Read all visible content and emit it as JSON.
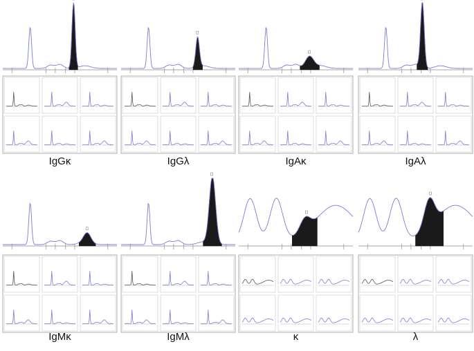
{
  "colors": {
    "trace": "#7b7bd6",
    "trace_dark": "#555555",
    "fill": "#1a1a1a",
    "box_border": "#9a9a9a",
    "axis": "#8a8a8a"
  },
  "panels": [
    {
      "id": "IgGk",
      "label": "IgGκ",
      "profile": "normal",
      "bandType": "spike",
      "bandPos": 0.62,
      "bandH": 1.0,
      "bandW": 0.03
    },
    {
      "id": "IgGl",
      "label": "IgGλ",
      "profile": "normal",
      "bandType": "spike",
      "bandPos": 0.67,
      "bandH": 0.45,
      "bandW": 0.035
    },
    {
      "id": "IgAk",
      "label": "IgAκ",
      "profile": "normal",
      "bandType": "bump",
      "bandPos": 0.62,
      "bandH": 0.18,
      "bandW": 0.08
    },
    {
      "id": "IgAl",
      "label": "IgAλ",
      "profile": "normal",
      "bandType": "spike",
      "bandPos": 0.56,
      "bandH": 1.0,
      "bandW": 0.035
    },
    {
      "id": "IgMk",
      "label": "IgMκ",
      "profile": "normal",
      "bandType": "bump",
      "bandPos": 0.74,
      "bandH": 0.14,
      "bandW": 0.07
    },
    {
      "id": "IgMl",
      "label": "IgMλ",
      "profile": "normal",
      "bandType": "spike",
      "bandPos": 0.8,
      "bandH": 1.0,
      "bandW": 0.06
    },
    {
      "id": "k",
      "label": "κ",
      "profile": "urine",
      "bandType": "bump",
      "bandPos": 0.58,
      "bandH": 0.2,
      "bandW": 0.1
    },
    {
      "id": "l",
      "label": "λ",
      "profile": "urine",
      "bandType": "bump",
      "bandPos": 0.62,
      "bandH": 0.42,
      "bandW": 0.1
    }
  ]
}
